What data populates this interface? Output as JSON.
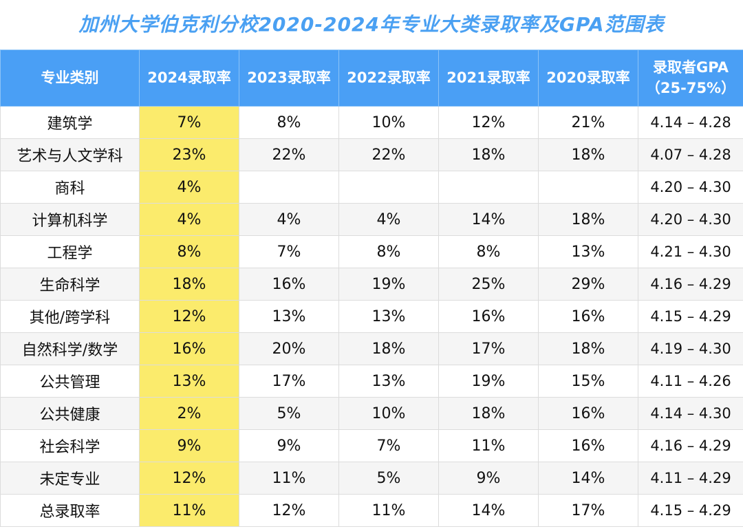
{
  "title": "加州大学伯克利分校2020-2024年专业大类录取率及GPA范围表",
  "colors": {
    "header_bg": "#4a9ff5",
    "title": "#4aa0f2",
    "highlight_2024": "#fbeb6c"
  },
  "headers": [
    "专业类别",
    "2024录取率",
    "2023录取率",
    "2022录取率",
    "2021录取率",
    "2020录取率",
    "录取者GPA",
    "（25-75%）"
  ],
  "rows": [
    [
      "建筑学",
      "7%",
      "8%",
      "10%",
      "12%",
      "21%",
      "4.14 – 4.28"
    ],
    [
      "艺术与人文学科",
      "23%",
      "22%",
      "22%",
      "18%",
      "18%",
      "4.07 – 4.28"
    ],
    [
      "商科",
      "4%",
      "",
      "",
      "",
      "",
      "4.20 – 4.30"
    ],
    [
      "计算机科学",
      "4%",
      "4%",
      "4%",
      "14%",
      "18%",
      "4.20 – 4.30"
    ],
    [
      "工程学",
      "8%",
      "7%",
      "8%",
      "8%",
      "13%",
      "4.21 – 4.30"
    ],
    [
      "生命科学",
      "18%",
      "16%",
      "19%",
      "25%",
      "29%",
      "4.16 – 4.29"
    ],
    [
      "其他/跨学科",
      "12%",
      "13%",
      "13%",
      "16%",
      "16%",
      "4.15 – 4.29"
    ],
    [
      "自然科学/数学",
      "16%",
      "20%",
      "18%",
      "17%",
      "18%",
      "4.19 – 4.30"
    ],
    [
      "公共管理",
      "13%",
      "17%",
      "13%",
      "19%",
      "15%",
      "4.11 – 4.26"
    ],
    [
      "公共健康",
      "2%",
      "5%",
      "10%",
      "18%",
      "16%",
      "4.14 – 4.30"
    ],
    [
      "社会科学",
      "9%",
      "9%",
      "7%",
      "11%",
      "16%",
      "4.16 – 4.29"
    ],
    [
      "未定专业",
      "12%",
      "11%",
      "5%",
      "9%",
      "14%",
      "4.11 – 4.29"
    ],
    [
      "总录取率",
      "11%",
      "12%",
      "11%",
      "14%",
      "17%",
      "4.15 – 4.29"
    ]
  ]
}
